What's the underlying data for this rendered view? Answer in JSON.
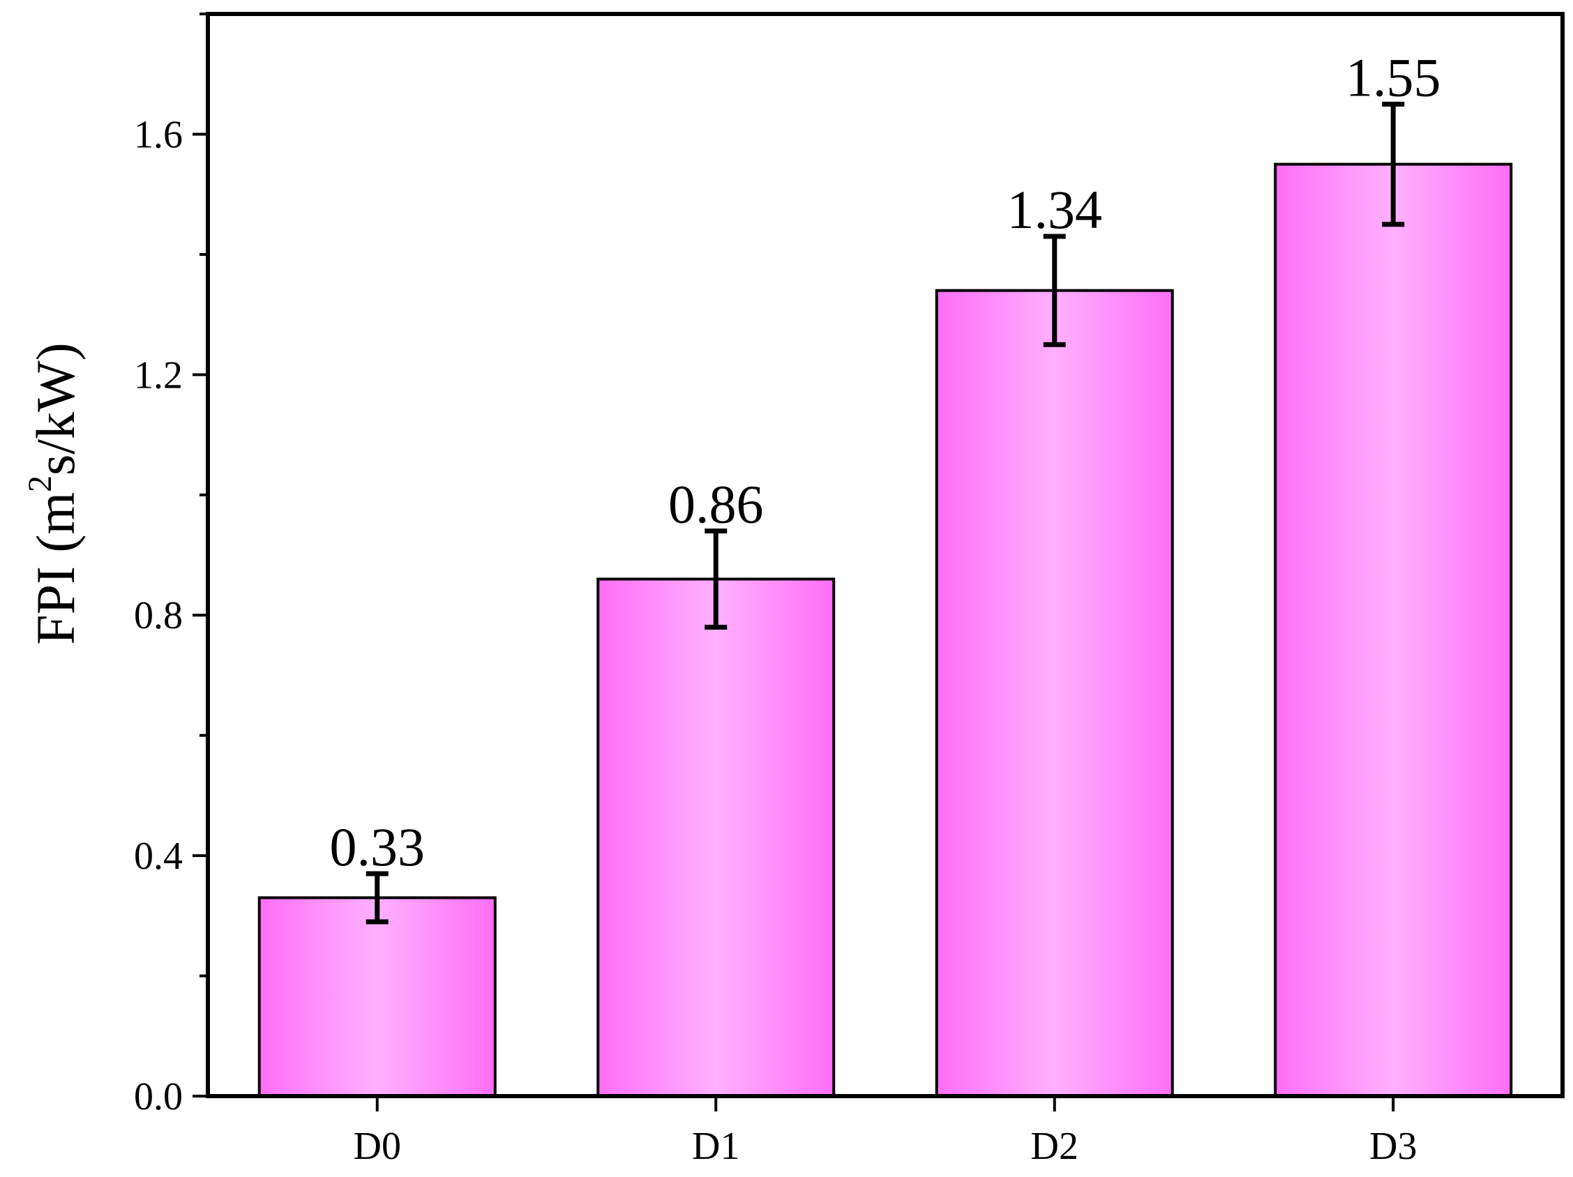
{
  "chart_data": {
    "type": "bar",
    "title": "",
    "xlabel": "",
    "ylabel": {
      "prefix": "FPI (m",
      "superscript": "2",
      "suffix": "s/kW)"
    },
    "categories": [
      "D0",
      "D1",
      "D2",
      "D3"
    ],
    "values": [
      0.33,
      0.86,
      1.34,
      1.55
    ],
    "errors": [
      0.04,
      0.08,
      0.09,
      0.1
    ],
    "value_labels": [
      "0.33",
      "0.86",
      "1.34",
      "1.55"
    ],
    "ylim": [
      0,
      1.8
    ],
    "yticks": [
      0.0,
      0.4,
      0.8,
      1.2,
      1.6
    ],
    "ytick_labels": [
      "0.0",
      "0.4",
      "0.8",
      "1.2",
      "1.6"
    ],
    "y_minor_step": 0.2,
    "grid": false,
    "legend": "none",
    "colors": {
      "bar_edge": "#ff6ef6",
      "bar_center": "#ffb0ff",
      "outline": "#000000"
    }
  }
}
